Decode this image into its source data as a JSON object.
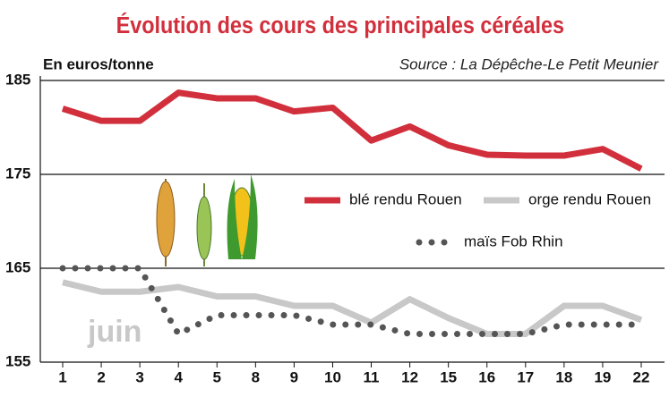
{
  "chart_data": {
    "type": "line",
    "title": "Évolution des cours des principales céréales",
    "y_label": "En euros/tonne",
    "source": "Source : La Dépêche-Le Petit Meunier",
    "annotation": "juin",
    "categories": [
      "1",
      "2",
      "3",
      "4",
      "5",
      "8",
      "9",
      "10",
      "11",
      "12",
      "15",
      "16",
      "17",
      "18",
      "19",
      "22"
    ],
    "series": [
      {
        "name": "blé rendu Rouen",
        "color": "#d22f3c",
        "style": "solid",
        "values": [
          182,
          180.7,
          180.7,
          183.7,
          183.1,
          183.1,
          181.7,
          182.1,
          178.6,
          180.1,
          178.1,
          177.1,
          177,
          177,
          177.7,
          175.6
        ]
      },
      {
        "name": "orge rendu Rouen",
        "color": "#c8c8c8",
        "style": "solid",
        "values": [
          163.5,
          162.5,
          162.5,
          163,
          162,
          162,
          161,
          161,
          159.2,
          161.7,
          159.7,
          158,
          158,
          161,
          161,
          159.5
        ]
      },
      {
        "name": "maïs Fob Rhin",
        "color": "#555555",
        "style": "dotted",
        "values": [
          165,
          165,
          165,
          158,
          160,
          160,
          160,
          159,
          159,
          158,
          158,
          158,
          158,
          159,
          159,
          159
        ]
      }
    ],
    "ylim": [
      155,
      185
    ],
    "yticks": [
      155,
      165,
      175,
      185
    ],
    "grid": true
  }
}
